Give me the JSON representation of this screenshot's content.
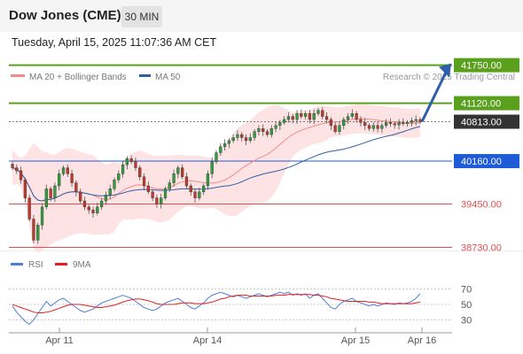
{
  "header": {
    "title": "Dow Jones (CME)",
    "timeframe": "30 MIN",
    "timestamp": "Tuesday, April 15, 2025 11:07:36 AM CET"
  },
  "legend": {
    "ma20": "MA 20 + Bollinger Bands",
    "ma50": "MA 50",
    "ma20_color": "#f28b8b",
    "ma50_color": "#2e5fa8",
    "copyright": "Research © 2025 Trading Central"
  },
  "rsi_legend": {
    "rsi": "RSI",
    "ma9": "9MA",
    "rsi_color": "#4f7fd6",
    "ma9_color": "#e02020"
  },
  "chart_data": [
    {
      "type": "candlestick",
      "x_ticks": [
        "Apr 11",
        "Apr 14",
        "Apr 15",
        "Apr 16"
      ],
      "y_range": [
        38650,
        41950
      ],
      "levels": [
        {
          "label": "41750.00",
          "value": 41750,
          "color": "#5aa01c",
          "role": "resistance"
        },
        {
          "label": "41120.00",
          "value": 41120,
          "color": "#5aa01c",
          "role": "resistance"
        },
        {
          "label": "40813.00",
          "value": 40813,
          "color": "#333333",
          "role": "last"
        },
        {
          "label": "40160.00",
          "value": 40160,
          "color": "#1e5bd7",
          "role": "pivot"
        },
        {
          "label": "39450.00",
          "value": 39450,
          "color": "#e05050",
          "role": "support"
        },
        {
          "label": "38730.00",
          "value": 38730,
          "color": "#e05050",
          "role": "support"
        }
      ],
      "closes": [
        40050,
        40000,
        39850,
        39550,
        39200,
        38850,
        39100,
        39400,
        39700,
        39550,
        39750,
        39950,
        40050,
        39950,
        39800,
        39650,
        39500,
        39400,
        39350,
        39300,
        39400,
        39500,
        39600,
        39700,
        39850,
        39950,
        40100,
        40200,
        40150,
        40050,
        39900,
        39750,
        39650,
        39550,
        39450,
        39550,
        39700,
        39800,
        39950,
        40050,
        39900,
        39750,
        39650,
        39550,
        39650,
        39750,
        39950,
        40150,
        40300,
        40400,
        40450,
        40500,
        40550,
        40600,
        40550,
        40500,
        40550,
        40650,
        40700,
        40650,
        40600,
        40700,
        40750,
        40800,
        40850,
        40900,
        40850,
        40950,
        40900,
        40950,
        40850,
        40950,
        41000,
        40900,
        40850,
        40750,
        40650,
        40750,
        40850,
        40900,
        40950,
        40850,
        40800,
        40750,
        40700,
        40750,
        40700,
        40750,
        40800,
        40780,
        40760,
        40800,
        40780,
        40800,
        40830,
        40850,
        40813
      ],
      "rsi": {
        "levels": [
          70,
          50,
          30
        ],
        "values": [
          48,
          40,
          34,
          28,
          24,
          30,
          38,
          46,
          54,
          48,
          52,
          56,
          58,
          54,
          50,
          46,
          42,
          40,
          42,
          44,
          48,
          52,
          54,
          56,
          58,
          60,
          62,
          60,
          58,
          54,
          50,
          46,
          44,
          42,
          44,
          48,
          52,
          54,
          56,
          58,
          54,
          50,
          46,
          44,
          48,
          52,
          58,
          62,
          64,
          66,
          64,
          62,
          60,
          62,
          60,
          58,
          60,
          62,
          64,
          62,
          60,
          62,
          64,
          66,
          64,
          66,
          62,
          64,
          62,
          64,
          58,
          62,
          64,
          58,
          52,
          46,
          44,
          50,
          54,
          56,
          58,
          54,
          52,
          50,
          48,
          50,
          48,
          50,
          52,
          51,
          50,
          52,
          51,
          52,
          54,
          58,
          64
        ],
        "ma9": [
          50,
          48,
          46,
          44,
          42,
          40,
          39,
          39,
          40,
          41,
          43,
          45,
          47,
          49,
          50,
          50,
          50,
          49,
          48,
          47,
          46,
          46,
          47,
          48,
          49,
          51,
          53,
          55,
          56,
          57,
          57,
          56,
          55,
          53,
          51,
          50,
          50,
          50,
          50,
          51,
          52,
          52,
          52,
          51,
          51,
          51,
          52,
          53,
          55,
          57,
          58,
          60,
          61,
          62,
          62,
          62,
          61,
          61,
          61,
          61,
          61,
          61,
          62,
          62,
          62,
          63,
          63,
          63,
          63,
          63,
          63,
          62,
          62,
          61,
          60,
          58,
          57,
          56,
          55,
          54,
          54,
          54,
          54,
          54,
          53,
          53,
          52,
          51,
          51,
          51,
          51,
          51,
          51,
          51,
          51,
          52,
          53
        ]
      }
    }
  ]
}
